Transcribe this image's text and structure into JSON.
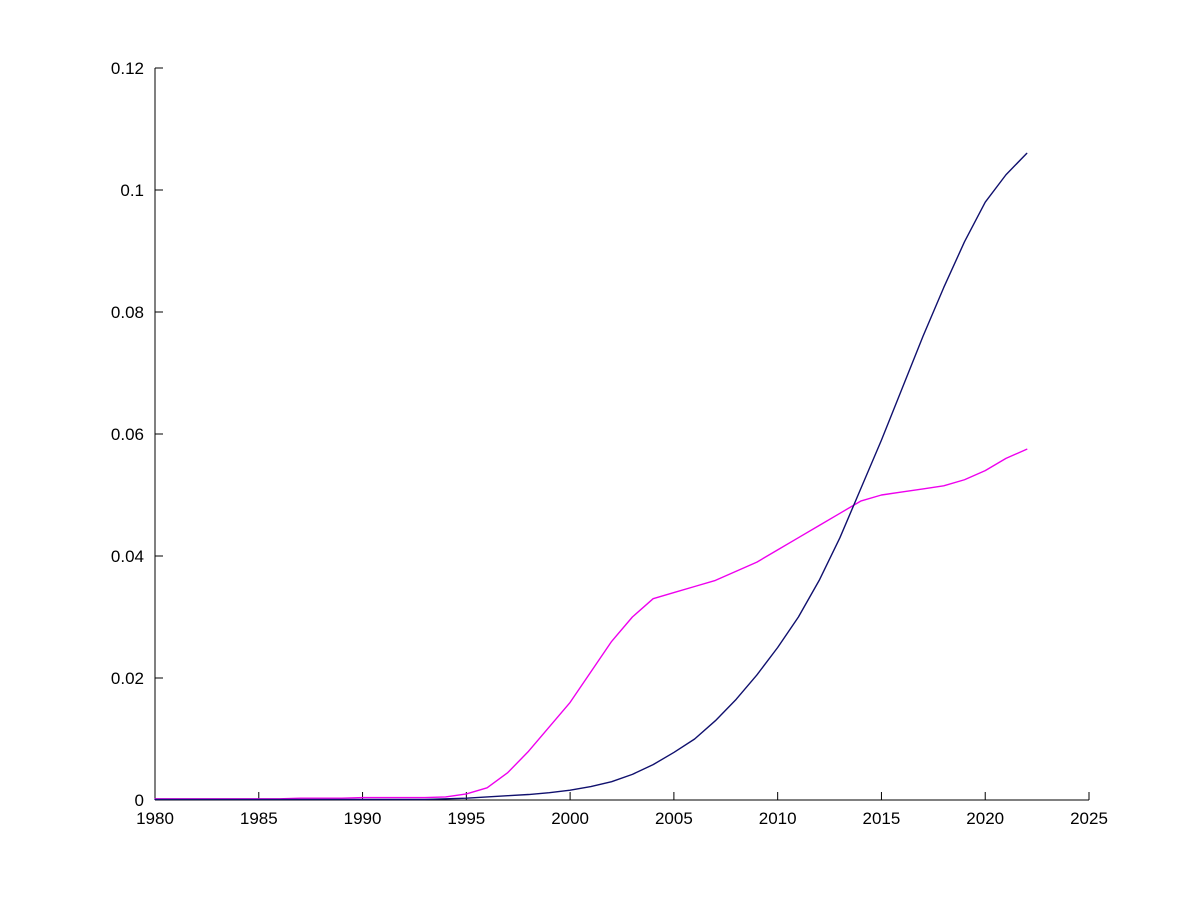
{
  "chart_data": {
    "type": "line",
    "title": "",
    "xlabel": "",
    "ylabel": "",
    "xlim": [
      1980,
      2025
    ],
    "ylim": [
      0,
      0.12
    ],
    "xticks": [
      1980,
      1985,
      1990,
      1995,
      2000,
      2005,
      2010,
      2015,
      2020,
      2025
    ],
    "xtick_labels": [
      "1980",
      "1985",
      "1990",
      "1995",
      "2000",
      "2005",
      "2010",
      "2015",
      "2020",
      "2025"
    ],
    "yticks": [
      0,
      0.02,
      0.04,
      0.06,
      0.08,
      0.1,
      0.12
    ],
    "ytick_labels": [
      "0",
      "0.02",
      "0.04",
      "0.06",
      "0.08",
      "0.1",
      "0.12"
    ],
    "grid": false,
    "legend": "none",
    "x": [
      1980,
      1981,
      1982,
      1983,
      1984,
      1985,
      1986,
      1987,
      1988,
      1989,
      1990,
      1991,
      1992,
      1993,
      1994,
      1995,
      1996,
      1997,
      1998,
      1999,
      2000,
      2001,
      2002,
      2003,
      2004,
      2005,
      2006,
      2007,
      2008,
      2009,
      2010,
      2011,
      2012,
      2013,
      2014,
      2015,
      2016,
      2017,
      2018,
      2019,
      2020,
      2021,
      2022
    ],
    "series": [
      {
        "name": "magenta",
        "color": "#ee00ee",
        "values": [
          0.0002,
          0.0002,
          0.0002,
          0.0002,
          0.0002,
          0.0002,
          0.0002,
          0.0003,
          0.0003,
          0.0003,
          0.0004,
          0.0004,
          0.0004,
          0.0004,
          0.0005,
          0.001,
          0.002,
          0.0045,
          0.008,
          0.012,
          0.016,
          0.021,
          0.026,
          0.03,
          0.033,
          0.034,
          0.035,
          0.036,
          0.0375,
          0.039,
          0.041,
          0.043,
          0.045,
          0.047,
          0.049,
          0.05,
          0.0505,
          0.051,
          0.0515,
          0.0525,
          0.054,
          0.056,
          0.0575
        ]
      },
      {
        "name": "dark-blue",
        "color": "#10106e",
        "values": [
          0.0001,
          0.0001,
          0.0001,
          0.0001,
          0.0001,
          0.0001,
          0.0001,
          0.0001,
          0.0001,
          0.0001,
          0.0001,
          0.0001,
          0.0001,
          0.0001,
          0.0002,
          0.0003,
          0.0005,
          0.0007,
          0.0009,
          0.0012,
          0.0016,
          0.0022,
          0.003,
          0.0042,
          0.0058,
          0.0078,
          0.01,
          0.013,
          0.0165,
          0.0205,
          0.025,
          0.03,
          0.036,
          0.043,
          0.051,
          0.059,
          0.0675,
          0.076,
          0.084,
          0.0915,
          0.098,
          0.1025,
          0.106
        ]
      }
    ],
    "axis_color": "#000000"
  }
}
